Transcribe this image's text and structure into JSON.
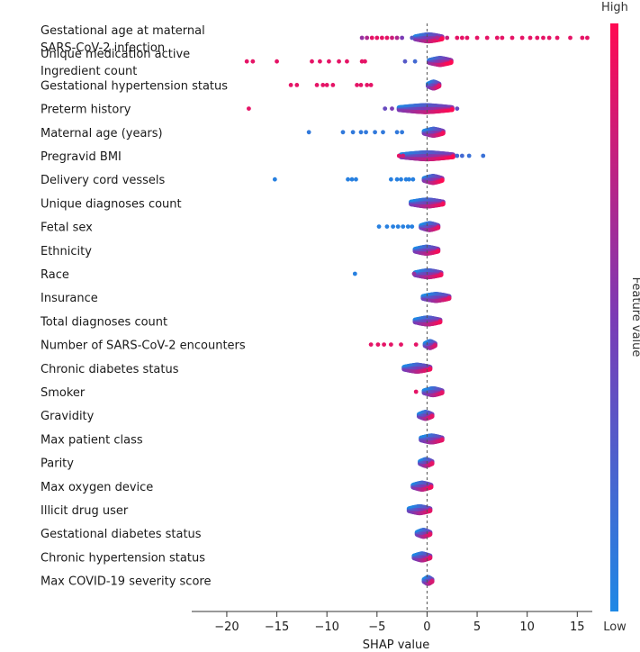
{
  "chart_data": {
    "type": "scatter",
    "subtype": "shap-beeswarm",
    "title": "",
    "xlabel": "SHAP value",
    "ylabel": "",
    "xlim": [
      -23.5,
      16.5
    ],
    "x_ticks": [
      -20,
      -15,
      -10,
      -5,
      0,
      5,
      10,
      15
    ],
    "x_tick_labels": [
      "−20",
      "−15",
      "−10",
      "−5",
      "0",
      "5",
      "10",
      "15"
    ],
    "zero_line": true,
    "colorbar": {
      "title": "Feature value",
      "high_label": "High",
      "low_label": "Low",
      "high_color": "#ff0a52",
      "mid_color": "#7b3bb5",
      "low_color": "#1e88e5"
    },
    "features": [
      {
        "label_lines": [
          "Gestational age at maternal",
          "SARS-CoV-2 infection"
        ],
        "core": [
          -1.2,
          1.5
        ],
        "width": 0.5,
        "dots": [
          [
            -6.5,
            0.6
          ],
          [
            -6,
            0.7
          ],
          [
            -5.5,
            0.9
          ],
          [
            -5,
            0.9
          ],
          [
            -4.5,
            0.9
          ],
          [
            -4,
            0.9
          ],
          [
            -3.5,
            0.8
          ],
          [
            -3,
            0.7
          ],
          [
            -2.5,
            0.5
          ],
          [
            -1.5,
            0.3
          ],
          [
            1,
            0.7
          ],
          [
            2,
            0.8
          ],
          [
            3,
            0.9
          ],
          [
            3.5,
            0.9
          ],
          [
            4,
            0.9
          ],
          [
            5,
            0.9
          ],
          [
            6,
            0.9
          ],
          [
            7,
            0.9
          ],
          [
            7.5,
            0.9
          ],
          [
            8.5,
            0.9
          ],
          [
            9.5,
            0.9
          ],
          [
            10.3,
            0.9
          ],
          [
            11,
            0.9
          ],
          [
            11.6,
            0.9
          ],
          [
            12.2,
            0.9
          ],
          [
            13,
            0.9
          ],
          [
            14.3,
            0.9
          ],
          [
            15.5,
            0.9
          ],
          [
            16,
            0.9
          ]
        ]
      },
      {
        "label_lines": [
          "Unique medication active",
          "Ingredient count"
        ],
        "core": [
          0.2,
          2.4
        ],
        "width": 0.55,
        "dots": [
          [
            -18,
            0.9
          ],
          [
            -17.4,
            0.9
          ],
          [
            -15,
            0.9
          ],
          [
            -11.5,
            0.9
          ],
          [
            -10.7,
            0.9
          ],
          [
            -9.8,
            0.9
          ],
          [
            -8.8,
            0.9
          ],
          [
            -8,
            0.9
          ],
          [
            -6.5,
            0.9
          ],
          [
            -6.2,
            0.9
          ],
          [
            -2.2,
            0.3
          ],
          [
            -1.2,
            0.2
          ]
        ]
      },
      {
        "label_lines": [
          "Gestational hypertension status"
        ],
        "core": [
          0.1,
          1.2
        ],
        "width": 0.4,
        "dots": [
          [
            -13.6,
            0.9
          ],
          [
            -13,
            0.9
          ],
          [
            -11,
            0.9
          ],
          [
            -10.4,
            0.9
          ],
          [
            -10,
            0.9
          ],
          [
            -9.4,
            0.9
          ],
          [
            -7,
            0.9
          ],
          [
            -6.6,
            0.9
          ],
          [
            -6,
            0.9
          ],
          [
            -5.6,
            0.9
          ]
        ]
      },
      {
        "label_lines": [
          "Preterm history"
        ],
        "core": [
          -2.8,
          2.5
        ],
        "width": 0.5,
        "dots": [
          [
            -17.8,
            0.9
          ],
          [
            -4.2,
            0.4
          ],
          [
            -3.5,
            0.5
          ],
          [
            3,
            0.4
          ]
        ]
      },
      {
        "label_lines": [
          "Maternal age (years)"
        ],
        "core": [
          -0.3,
          1.6
        ],
        "width": 0.45,
        "dots": [
          [
            -11.8,
            0.1
          ],
          [
            -8.4,
            0.1
          ],
          [
            -7.4,
            0.1
          ],
          [
            -6.6,
            0.1
          ],
          [
            -6.1,
            0.1
          ],
          [
            -5.2,
            0.1
          ],
          [
            -4.4,
            0.1
          ],
          [
            -3,
            0.1
          ],
          [
            -2.5,
            0.1
          ]
        ]
      },
      {
        "label_lines": [
          "Pregravid BMI"
        ],
        "core": [
          -2.6,
          2.6
        ],
        "width": 0.5,
        "dots": [
          [
            -2.8,
            0.9
          ],
          [
            -2.4,
            0.8
          ],
          [
            3,
            0.2
          ],
          [
            3.5,
            0.2
          ],
          [
            4.2,
            0.15
          ],
          [
            5.6,
            0.15
          ]
        ]
      },
      {
        "label_lines": [
          "Delivery cord vessels"
        ],
        "core": [
          -0.3,
          1.5
        ],
        "width": 0.5,
        "dots": [
          [
            -15.2,
            0.05
          ],
          [
            -7.9,
            0.05
          ],
          [
            -7.5,
            0.05
          ],
          [
            -7.1,
            0.05
          ],
          [
            -3.6,
            0.05
          ],
          [
            -3,
            0.05
          ],
          [
            -2.6,
            0.05
          ],
          [
            -2.1,
            0.05
          ],
          [
            -1.8,
            0.05
          ],
          [
            -1.4,
            0.05
          ]
        ]
      },
      {
        "label_lines": [
          "Unique diagnoses count"
        ],
        "core": [
          -1.6,
          1.6
        ],
        "width": 0.45,
        "dots": []
      },
      {
        "label_lines": [
          "Fetal sex"
        ],
        "core": [
          -0.6,
          1.1
        ],
        "width": 0.4,
        "dots": [
          [
            -4.8,
            0.05
          ],
          [
            -4,
            0.05
          ],
          [
            -3.4,
            0.05
          ],
          [
            -2.9,
            0.05
          ],
          [
            -2.4,
            0.05
          ],
          [
            -1.9,
            0.05
          ],
          [
            -1.5,
            0.05
          ]
        ]
      },
      {
        "label_lines": [
          "Ethnicity"
        ],
        "core": [
          -1.2,
          1.1
        ],
        "width": 0.45,
        "dots": []
      },
      {
        "label_lines": [
          "Race"
        ],
        "core": [
          -1.2,
          1.4
        ],
        "width": 0.45,
        "dots": [
          [
            -7.2,
            0.05
          ],
          [
            -1.3,
            0.6
          ]
        ]
      },
      {
        "label_lines": [
          "Insurance"
        ],
        "core": [
          -0.4,
          2.2
        ],
        "width": 0.4,
        "dots": []
      },
      {
        "label_lines": [
          "Total diagnoses count"
        ],
        "core": [
          -1.2,
          1.3
        ],
        "width": 0.45,
        "dots": []
      },
      {
        "label_lines": [
          "Number of SARS-CoV-2 encounters"
        ],
        "core": [
          -0.2,
          0.8
        ],
        "width": 0.35,
        "dots": [
          [
            -5.6,
            0.9
          ],
          [
            -4.9,
            0.9
          ],
          [
            -4.3,
            0.9
          ],
          [
            -3.6,
            0.9
          ],
          [
            -2.6,
            0.9
          ],
          [
            -1.1,
            0.9
          ]
        ]
      },
      {
        "label_lines": [
          "Chronic diabetes status"
        ],
        "core": [
          -2.3,
          0.3
        ],
        "width": 0.45,
        "dots": []
      },
      {
        "label_lines": [
          "Smoker"
        ],
        "core": [
          -0.3,
          1.5
        ],
        "width": 0.4,
        "dots": [
          [
            -1.1,
            0.9
          ]
        ]
      },
      {
        "label_lines": [
          "Gravidity"
        ],
        "core": [
          -0.8,
          0.5
        ],
        "width": 0.4,
        "dots": []
      },
      {
        "label_lines": [
          "Max patient class"
        ],
        "core": [
          -0.6,
          1.5
        ],
        "width": 0.4,
        "dots": []
      },
      {
        "label_lines": [
          "Parity"
        ],
        "core": [
          -0.7,
          0.5
        ],
        "width": 0.4,
        "dots": []
      },
      {
        "label_lines": [
          "Max oxygen device"
        ],
        "core": [
          -1.4,
          0.4
        ],
        "width": 0.45,
        "dots": []
      },
      {
        "label_lines": [
          "Illicit drug user"
        ],
        "core": [
          -1.8,
          0.3
        ],
        "width": 0.4,
        "dots": []
      },
      {
        "label_lines": [
          "Gestational diabetes status"
        ],
        "core": [
          -1.0,
          0.3
        ],
        "width": 0.4,
        "dots": []
      },
      {
        "label_lines": [
          "Chronic hypertension status"
        ],
        "core": [
          -1.3,
          0.3
        ],
        "width": 0.4,
        "dots": []
      },
      {
        "label_lines": [
          "Max COVID-19 severity score"
        ],
        "core": [
          -0.3,
          0.5
        ],
        "width": 0.35,
        "dots": []
      }
    ]
  }
}
